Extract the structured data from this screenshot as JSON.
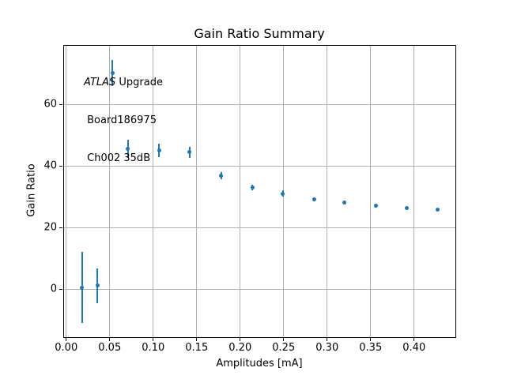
{
  "chart_data": {
    "type": "scatter",
    "title": "Gain Ratio Summary",
    "xlabel": "Amplitudes [mA]",
    "ylabel": "Gain Ratio",
    "annotation": {
      "line1_italic": "ATLAS",
      "line1_rest": " Upgrade",
      "line2": " Board186975",
      "line3": " Ch002 35dB"
    },
    "xlim": [
      -0.0025,
      0.4475
    ],
    "ylim": [
      -15.4,
      79.2
    ],
    "grid": true,
    "legend": false,
    "marker_color": "#1f77b4",
    "grid_color": "#b0b0b0",
    "xticks": [
      {
        "v": 0.0,
        "label": "0.00"
      },
      {
        "v": 0.05,
        "label": "0.05"
      },
      {
        "v": 0.1,
        "label": "0.10"
      },
      {
        "v": 0.15,
        "label": "0.15"
      },
      {
        "v": 0.2,
        "label": "0.20"
      },
      {
        "v": 0.25,
        "label": "0.25"
      },
      {
        "v": 0.3,
        "label": "0.30"
      },
      {
        "v": 0.35,
        "label": "0.35"
      },
      {
        "v": 0.4,
        "label": "0.40"
      }
    ],
    "yticks": [
      {
        "v": 0,
        "label": "0"
      },
      {
        "v": 20,
        "label": "20"
      },
      {
        "v": 40,
        "label": "40"
      },
      {
        "v": 60,
        "label": "60"
      }
    ],
    "points": [
      {
        "x": 0.018,
        "y": 0.7,
        "yerr": 11.6
      },
      {
        "x": 0.036,
        "y": 1.3,
        "yerr": 5.7
      },
      {
        "x": 0.053,
        "y": 70.3,
        "yerr": 4.2
      },
      {
        "x": 0.071,
        "y": 45.8,
        "yerr": 3.0
      },
      {
        "x": 0.107,
        "y": 45.2,
        "yerr": 2.2
      },
      {
        "x": 0.142,
        "y": 44.7,
        "yerr": 1.8
      },
      {
        "x": 0.178,
        "y": 37.0,
        "yerr": 1.2
      },
      {
        "x": 0.214,
        "y": 33.2,
        "yerr": 0.9
      },
      {
        "x": 0.249,
        "y": 31.2,
        "yerr": 1.0
      },
      {
        "x": 0.285,
        "y": 29.4,
        "yerr": 0.7
      },
      {
        "x": 0.32,
        "y": 28.3,
        "yerr": 0.6
      },
      {
        "x": 0.356,
        "y": 27.2,
        "yerr": 0.5
      },
      {
        "x": 0.392,
        "y": 26.5,
        "yerr": 0.5
      },
      {
        "x": 0.427,
        "y": 26.0,
        "yerr": 0.5
      }
    ]
  }
}
